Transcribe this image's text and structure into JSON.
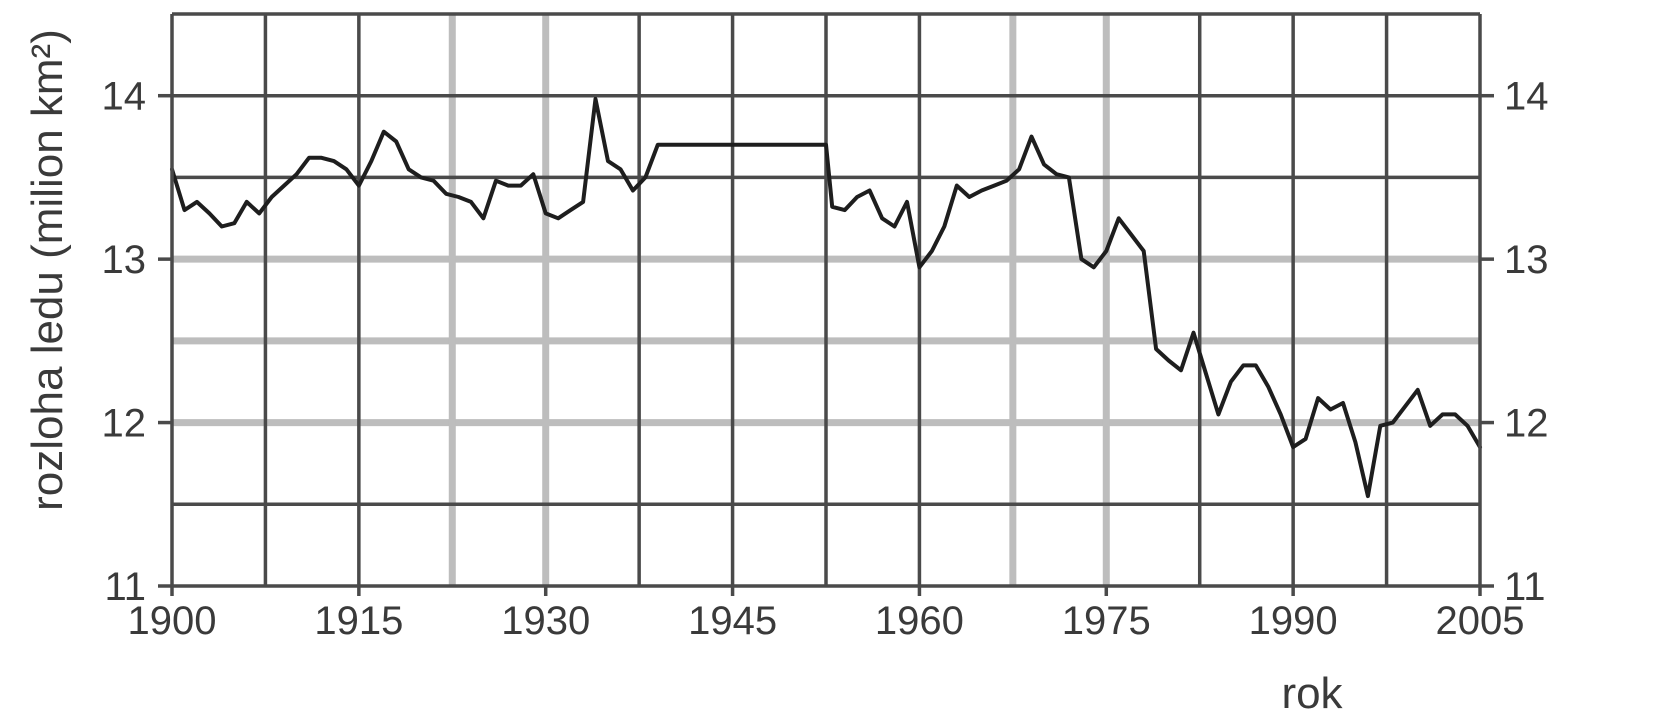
{
  "chart_data": {
    "type": "line",
    "title": "",
    "xlabel": "rok",
    "ylabel": "rozloha ledu (milion km²)",
    "xlim": [
      1900,
      2005
    ],
    "ylim": [
      11,
      14.5
    ],
    "x_ticks": [
      1900,
      1915,
      1930,
      1945,
      1960,
      1975,
      1990,
      2005
    ],
    "x_tick_labels": [
      "1900",
      "1915",
      "1930",
      "1945",
      "1960",
      "1975",
      "1990",
      "2005"
    ],
    "y_ticks": [
      11,
      12,
      13,
      14
    ],
    "y_tick_labels": [
      "11",
      "12",
      "13",
      "14"
    ],
    "right_y_tick_labels": [
      "11",
      "12",
      "13",
      "14"
    ],
    "grid": true,
    "x_grid_dark": [
      1907.5,
      1915,
      1937.5,
      1945,
      1952.5,
      1960,
      1982.5,
      1990,
      1997.5
    ],
    "x_grid_light": [
      1922.5,
      1930,
      1967.5,
      1975
    ],
    "y_grid_dark": [
      11.5,
      13.5,
      14.0
    ],
    "y_grid_light": [
      12.0,
      12.5,
      13.0
    ],
    "series": [
      {
        "x": [
          1900,
          1901,
          1902,
          1903,
          1904,
          1905,
          1906,
          1907,
          1908,
          1909,
          1910,
          1911,
          1912,
          1913,
          1914,
          1915,
          1916,
          1917,
          1918,
          1919,
          1920,
          1921,
          1922,
          1923,
          1924,
          1925,
          1926,
          1927,
          1928,
          1929,
          1930,
          1931,
          1932,
          1933,
          1934,
          1935,
          1936,
          1937,
          1938,
          1939,
          1940,
          1952.5,
          1953,
          1954,
          1955,
          1956,
          1957,
          1958,
          1959,
          1960,
          1961,
          1962,
          1963,
          1964,
          1965,
          1966,
          1967,
          1968,
          1969,
          1970,
          1971,
          1972,
          1973,
          1974,
          1975,
          1976,
          1977,
          1978,
          1979,
          1980,
          1981,
          1982,
          1983,
          1984,
          1985,
          1986,
          1987,
          1988,
          1989,
          1990,
          1991,
          1992,
          1993,
          1994,
          1995,
          1996,
          1997,
          1998,
          1999,
          2000,
          2001,
          2002,
          2003,
          2004,
          2005
        ],
        "values": [
          13.55,
          13.3,
          13.35,
          13.28,
          13.2,
          13.22,
          13.35,
          13.28,
          13.38,
          13.45,
          13.52,
          13.62,
          13.62,
          13.6,
          13.55,
          13.45,
          13.6,
          13.78,
          13.72,
          13.55,
          13.5,
          13.48,
          13.4,
          13.38,
          13.35,
          13.25,
          13.48,
          13.45,
          13.45,
          13.52,
          13.28,
          13.25,
          13.3,
          13.35,
          13.98,
          13.6,
          13.55,
          13.42,
          13.5,
          13.7,
          13.7,
          13.7,
          13.32,
          13.3,
          13.38,
          13.42,
          13.25,
          13.2,
          13.35,
          12.95,
          13.05,
          13.2,
          13.45,
          13.38,
          13.42,
          13.45,
          13.48,
          13.55,
          13.75,
          13.58,
          13.52,
          13.5,
          13.0,
          12.95,
          13.05,
          13.25,
          13.15,
          13.05,
          12.45,
          12.38,
          12.32,
          12.55,
          12.3,
          12.05,
          12.25,
          12.35,
          12.35,
          12.22,
          12.05,
          11.85,
          11.9,
          12.15,
          12.08,
          12.12,
          11.88,
          11.55,
          11.98,
          12.0,
          12.1,
          12.2,
          11.98,
          12.05,
          12.05,
          11.98,
          11.85
        ]
      }
    ]
  }
}
